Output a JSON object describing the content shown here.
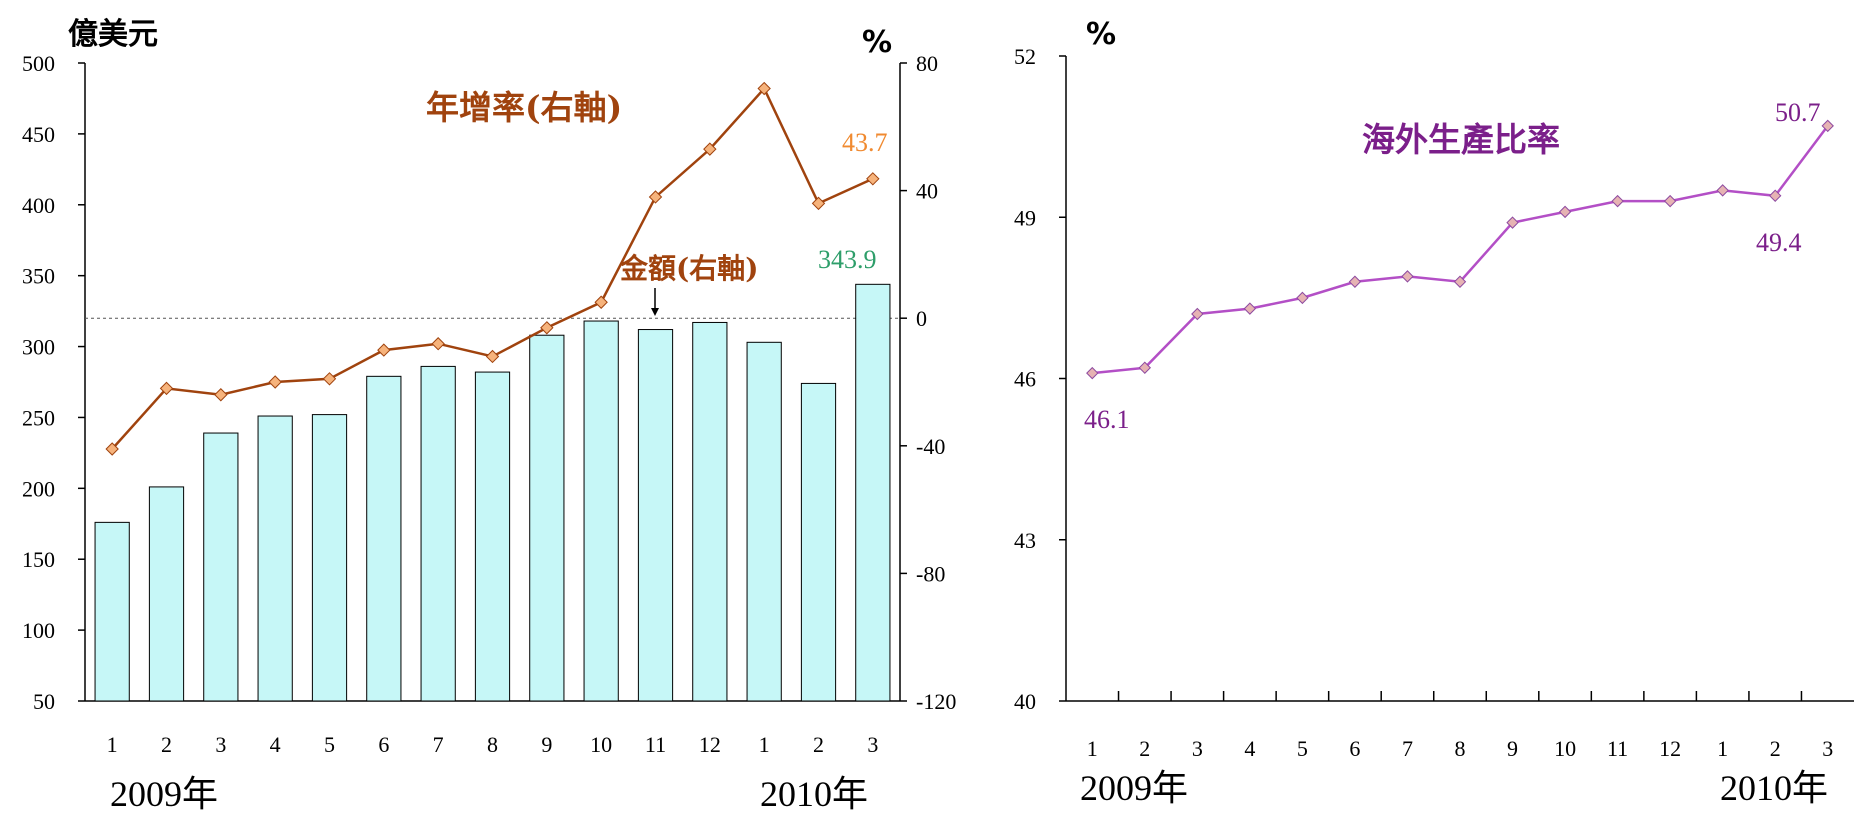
{
  "chart_data": [
    {
      "type": "bar+line",
      "left_unit": "億美元",
      "right_unit": "%",
      "categories": [
        "1",
        "2",
        "3",
        "4",
        "5",
        "6",
        "7",
        "8",
        "9",
        "10",
        "11",
        "12",
        "1",
        "2",
        "3"
      ],
      "year_labels": [
        "2009年",
        "2010年"
      ],
      "y_left_lim": [
        50,
        500
      ],
      "y_left_ticks": [
        50,
        100,
        150,
        200,
        250,
        300,
        350,
        400,
        450,
        500
      ],
      "y_right_lim": [
        -120,
        80
      ],
      "y_right_ticks": [
        80,
        40,
        0,
        -40,
        -80,
        -120
      ],
      "bars": {
        "name": "金額(右軸)",
        "values": [
          176,
          201,
          239,
          251,
          252,
          279,
          286,
          282,
          308,
          318,
          312,
          317,
          303,
          274,
          343.9
        ],
        "color": "#c6f7f7"
      },
      "line": {
        "name": "年增率(右軸)",
        "values": [
          -41,
          -22,
          -24,
          -20,
          -19,
          -10,
          -8,
          -12,
          -3,
          5,
          38,
          53,
          72,
          36,
          43.7
        ],
        "color": "#a0430e",
        "marker_color": "#f6b37c"
      },
      "reference_line": 0,
      "data_labels": {
        "line_last": "43.7",
        "bar_last": "343.9"
      }
    },
    {
      "type": "line",
      "unit": "%",
      "categories": [
        "1",
        "2",
        "3",
        "4",
        "5",
        "6",
        "7",
        "8",
        "9",
        "10",
        "11",
        "12",
        "1",
        "2",
        "3"
      ],
      "year_labels": [
        "2009年",
        "2010年"
      ],
      "ylim": [
        40,
        52
      ],
      "y_ticks": [
        40,
        43,
        46,
        49,
        52
      ],
      "series": {
        "name": "海外生產比率",
        "values": [
          46.1,
          46.2,
          47.2,
          47.3,
          47.5,
          47.8,
          47.9,
          47.8,
          48.9,
          49.1,
          49.3,
          49.3,
          49.5,
          49.4,
          50.7
        ],
        "color": "#b34fc6",
        "marker_color": "#e6b3b3"
      },
      "data_labels": {
        "first": "46.1",
        "second_last": "49.4",
        "last": "50.7"
      }
    }
  ]
}
